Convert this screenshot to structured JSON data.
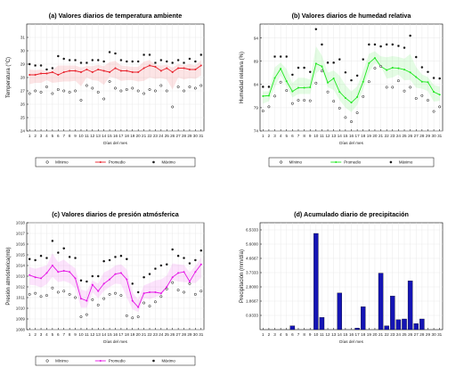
{
  "chart_data": [
    {
      "type": "line",
      "title": "(a) Valores diarios de temperatura ambiente",
      "xlabel": "",
      "ylabel": "Temperatura (°C)",
      "ylim": [
        24,
        32
      ],
      "yticks": [
        24,
        25,
        26,
        27,
        28,
        29,
        30,
        31
      ],
      "x": [
        1,
        2,
        3,
        4,
        5,
        6,
        7,
        8,
        9,
        10,
        11,
        12,
        13,
        14,
        15,
        16,
        17,
        18,
        19,
        20,
        21,
        22,
        23,
        24,
        25,
        26,
        27,
        28,
        29,
        30,
        31
      ],
      "grid": true,
      "legend_position": "bottom",
      "series": [
        {
          "name": "Mínimo",
          "marker": "open-circle",
          "color": "#000000",
          "values": [
            26.8,
            27,
            26.9,
            27.3,
            26.8,
            27.1,
            27,
            26.9,
            27,
            26.3,
            27.4,
            27.2,
            26.9,
            26.4,
            27.7,
            27.2,
            27,
            27.1,
            27.2,
            27,
            26.8,
            27.1,
            27,
            27.4,
            27,
            25.8,
            27.3,
            27,
            27.3,
            27.2,
            27.4
          ]
        },
        {
          "name": "Promedio",
          "marker": "filled-circle",
          "color": "#e8202a",
          "values": [
            28.2,
            28.2,
            28.3,
            28.3,
            28.4,
            28.2,
            28.4,
            28.5,
            28.5,
            28.4,
            28.6,
            28.4,
            28.6,
            28.5,
            28.4,
            28.7,
            28.5,
            28.5,
            28.4,
            28.4,
            28.7,
            28.9,
            28.8,
            28.5,
            28.7,
            28.4,
            28.7,
            28.7,
            28.6,
            28.6,
            28.9
          ]
        },
        {
          "name": "Máximo",
          "marker": "star",
          "color": "#000000",
          "values": [
            29,
            28.9,
            28.9,
            28.6,
            28.7,
            29.6,
            29.4,
            29.3,
            29.3,
            29.1,
            29.1,
            29.3,
            29.3,
            29.2,
            29.9,
            29.8,
            29.3,
            29.2,
            29.2,
            29.2,
            29.7,
            29.7,
            29.1,
            29.3,
            29.2,
            29.1,
            29.3,
            29.1,
            29.4,
            29.2,
            29.7
          ]
        }
      ]
    },
    {
      "type": "line",
      "title": "(b) Valores diarios de humedad relativa",
      "xlabel": "",
      "ylabel": "Humedad relativa (%)",
      "ylim": [
        74,
        97
      ],
      "yticks": [
        74,
        79,
        84,
        89,
        94
      ],
      "x": [
        1,
        2,
        3,
        4,
        5,
        6,
        7,
        8,
        9,
        10,
        11,
        12,
        13,
        14,
        15,
        16,
        17,
        18,
        19,
        20,
        21,
        22,
        23,
        24,
        25,
        26,
        27,
        28,
        29,
        30,
        31
      ],
      "grid": true,
      "legend_position": "bottom",
      "series": [
        {
          "name": "Mínimo",
          "marker": "open-circle",
          "color": "#000000",
          "values": [
            78.3,
            79.2,
            81.5,
            84.5,
            82.7,
            79.9,
            80.6,
            80.6,
            80.5,
            84.3,
            86.9,
            82.4,
            80.4,
            78.9,
            76.9,
            76,
            77.9,
            81.4,
            84.6,
            87.5,
            87.9,
            83.4,
            83.4,
            84.8,
            82.6,
            83.4,
            81,
            81.6,
            80.6,
            78.2,
            79.2
          ]
        },
        {
          "name": "Promedio",
          "marker": "filled-circle",
          "color": "#1fe71f",
          "values": [
            81.5,
            81.6,
            85.4,
            87.4,
            84.7,
            82.5,
            83.3,
            83.3,
            83.4,
            88.5,
            87.9,
            84.4,
            85.3,
            82.4,
            81.1,
            80.1,
            81.3,
            84.6,
            88.6,
            89.7,
            87.9,
            87.1,
            87.6,
            87.5,
            87.2,
            86.6,
            85.6,
            84.6,
            84.5,
            82.4,
            81.8
          ]
        },
        {
          "name": "Máximo",
          "marker": "star",
          "color": "#000000",
          "values": [
            83.5,
            83.5,
            90,
            90,
            90,
            86.1,
            87.6,
            87.6,
            86.7,
            95.9,
            92.6,
            88.7,
            88.7,
            89.4,
            86.6,
            84.9,
            85.9,
            89.4,
            92.6,
            92.6,
            92.2,
            92.6,
            92.6,
            92.3,
            91.9,
            94.5,
            89.9,
            87.7,
            86.7,
            85.4,
            85.3
          ]
        }
      ]
    },
    {
      "type": "line",
      "title": "(c) Valores diarios de presión atmósferica",
      "xlabel": "",
      "ylabel": "Presión atmósferica(mb)",
      "ylim": [
        1008,
        1018
      ],
      "yticks": [
        1008,
        1009,
        1010,
        1011,
        1012,
        1013,
        1014,
        1015,
        1016,
        1017,
        1018
      ],
      "x": [
        1,
        2,
        3,
        4,
        5,
        6,
        7,
        8,
        9,
        10,
        11,
        12,
        13,
        14,
        15,
        16,
        17,
        18,
        19,
        20,
        21,
        22,
        23,
        24,
        25,
        26,
        27,
        28,
        29,
        30,
        31
      ],
      "grid": true,
      "legend_position": "bottom",
      "series": [
        {
          "name": "Mínimo",
          "marker": "open-circle",
          "color": "#000000",
          "values": [
            1011.3,
            1011.4,
            1011.1,
            1011.2,
            1011.9,
            1011.5,
            1011.6,
            1011.3,
            1011,
            1009.2,
            1009.4,
            1010.8,
            1010.3,
            1010.9,
            1011.3,
            1011.4,
            1011.2,
            1009.3,
            1009.1,
            1009.2,
            1010.5,
            1010.2,
            1010.6,
            1011.1,
            1011.8,
            1012.4,
            1011.7,
            1011.5,
            1012.3,
            1011.3,
            1011.6
          ]
        },
        {
          "name": "Promedio",
          "marker": "filled-circle",
          "color": "#e515e5",
          "values": [
            1013.1,
            1012.9,
            1012.8,
            1013.3,
            1014,
            1013.4,
            1013.5,
            1013.4,
            1012.8,
            1010.9,
            1010.7,
            1012.2,
            1011.6,
            1012.3,
            1012.7,
            1013.2,
            1013.3,
            1012.7,
            1010.7,
            1010.1,
            1011.4,
            1011.5,
            1011.5,
            1011.4,
            1012,
            1012.9,
            1013.3,
            1013.4,
            1012.5,
            1013.4,
            1014.1
          ]
        },
        {
          "name": "Máximo",
          "marker": "star",
          "color": "#000000",
          "values": [
            1014.6,
            1014.5,
            1014.9,
            1014.7,
            1016.3,
            1015.2,
            1015.6,
            1014.8,
            1014.7,
            1012.6,
            1012.5,
            1013,
            1013,
            1014.4,
            1014.5,
            1014.8,
            1014.9,
            1014.6,
            1012.3,
            1011.5,
            1012.9,
            1013.2,
            1013.7,
            1014,
            1014.1,
            1015.5,
            1014.9,
            1014.7,
            1014.2,
            1014.5,
            1015.4
          ]
        }
      ]
    },
    {
      "type": "bar",
      "title": "(d) Acumulado diario de precipitación",
      "xlabel": "Días del mes",
      "ylabel": "Precipitación (mm/día)",
      "ylim": [
        0,
        7.0
      ],
      "yticks": [
        0.9333,
        1.8667,
        2.8,
        3.7333,
        4.6667,
        5.6,
        6.5333
      ],
      "ytick_labels": [
        "0.9333",
        "1.8667",
        "2.8000",
        "3.7333",
        "4.6667",
        "5.6000",
        "6.5333"
      ],
      "bar_color": "#1414b4",
      "grid": true,
      "categories": [
        1,
        2,
        3,
        4,
        5,
        6,
        7,
        8,
        9,
        10,
        11,
        12,
        13,
        14,
        15,
        16,
        17,
        18,
        19,
        20,
        21,
        22,
        23,
        24,
        25,
        26,
        27,
        28,
        29,
        30,
        31
      ],
      "values": [
        0,
        0,
        0,
        0,
        0,
        0.25,
        0,
        0,
        0,
        6.3,
        0.8,
        0,
        0,
        2.4,
        0,
        0,
        0.1,
        1.5,
        0,
        0,
        3.7,
        0.25,
        2.2,
        0.65,
        0.7,
        3.2,
        0.4,
        0.7,
        0,
        0,
        0
      ]
    }
  ]
}
